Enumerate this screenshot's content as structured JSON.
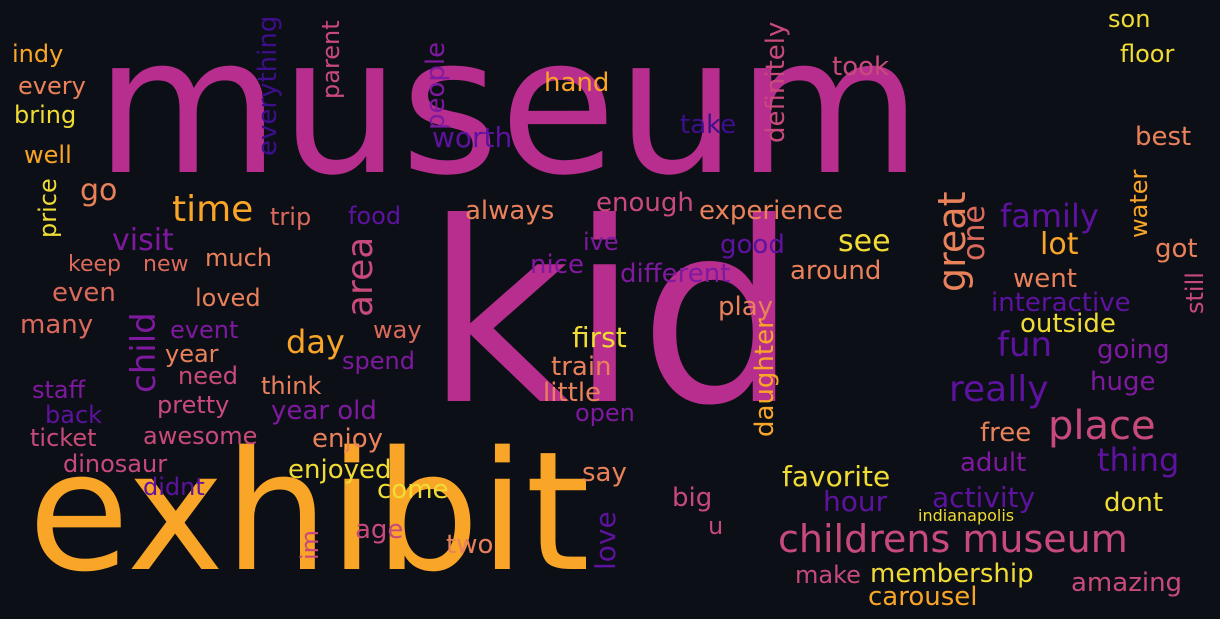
{
  "background": "#0d0f16",
  "palette": {
    "magenta": "#b82e8f",
    "orange": "#f9a528",
    "yellow": "#f0dc34",
    "salmon": "#dc6a5c",
    "coral": "#e9815a",
    "pink": "#c84a7c",
    "purple": "#7e19a0",
    "violet": "#5d12a0",
    "indigo": "#3d0f8c"
  },
  "words": [
    {
      "text": "museum",
      "color": "magenta"
    },
    {
      "text": "kid",
      "color": "magenta"
    },
    {
      "text": "exhibit",
      "color": "orange"
    },
    {
      "text": "childrens museum",
      "color": "pink"
    },
    {
      "text": "son",
      "color": "yellow"
    },
    {
      "text": "floor",
      "color": "yellow"
    },
    {
      "text": "indy",
      "color": "orange"
    },
    {
      "text": "every",
      "color": "coral"
    },
    {
      "text": "bring",
      "color": "yellow"
    },
    {
      "text": "well",
      "color": "orange"
    },
    {
      "text": "go",
      "color": "coral"
    },
    {
      "text": "price",
      "color": "yellow"
    },
    {
      "text": "time",
      "color": "orange"
    },
    {
      "text": "trip",
      "color": "salmon"
    },
    {
      "text": "visit",
      "color": "purple"
    },
    {
      "text": "keep",
      "color": "salmon"
    },
    {
      "text": "new",
      "color": "salmon"
    },
    {
      "text": "much",
      "color": "coral"
    },
    {
      "text": "even",
      "color": "salmon"
    },
    {
      "text": "loved",
      "color": "coral"
    },
    {
      "text": "many",
      "color": "salmon"
    },
    {
      "text": "child",
      "color": "purple"
    },
    {
      "text": "event",
      "color": "purple"
    },
    {
      "text": "year",
      "color": "coral"
    },
    {
      "text": "need",
      "color": "pink"
    },
    {
      "text": "staff",
      "color": "purple"
    },
    {
      "text": "pretty",
      "color": "pink"
    },
    {
      "text": "back",
      "color": "violet"
    },
    {
      "text": "ticket",
      "color": "pink"
    },
    {
      "text": "awesome",
      "color": "pink"
    },
    {
      "text": "dinosaur",
      "color": "pink"
    },
    {
      "text": "didnt",
      "color": "violet"
    },
    {
      "text": "everything",
      "color": "indigo"
    },
    {
      "text": "parent",
      "color": "pink"
    },
    {
      "text": "people",
      "color": "purple"
    },
    {
      "text": "worth",
      "color": "violet"
    },
    {
      "text": "hand",
      "color": "orange"
    },
    {
      "text": "take",
      "color": "indigo"
    },
    {
      "text": "definitely",
      "color": "pink"
    },
    {
      "text": "took",
      "color": "pink"
    },
    {
      "text": "best",
      "color": "coral"
    },
    {
      "text": "food",
      "color": "violet"
    },
    {
      "text": "always",
      "color": "coral"
    },
    {
      "text": "enough",
      "color": "pink"
    },
    {
      "text": "experience",
      "color": "coral"
    },
    {
      "text": "area",
      "color": "pink"
    },
    {
      "text": "day",
      "color": "orange"
    },
    {
      "text": "way",
      "color": "salmon"
    },
    {
      "text": "spend",
      "color": "purple"
    },
    {
      "text": "think",
      "color": "coral"
    },
    {
      "text": "year old",
      "color": "purple"
    },
    {
      "text": "enjoy",
      "color": "coral"
    },
    {
      "text": "ive",
      "color": "purple"
    },
    {
      "text": "nice",
      "color": "purple"
    },
    {
      "text": "good",
      "color": "violet"
    },
    {
      "text": "different",
      "color": "purple"
    },
    {
      "text": "see",
      "color": "yellow"
    },
    {
      "text": "around",
      "color": "coral"
    },
    {
      "text": "great",
      "color": "coral"
    },
    {
      "text": "one",
      "color": "salmon"
    },
    {
      "text": "family",
      "color": "violet"
    },
    {
      "text": "lot",
      "color": "orange"
    },
    {
      "text": "water",
      "color": "orange"
    },
    {
      "text": "got",
      "color": "coral"
    },
    {
      "text": "went",
      "color": "coral"
    },
    {
      "text": "interactive",
      "color": "violet"
    },
    {
      "text": "still",
      "color": "pink"
    },
    {
      "text": "play",
      "color": "coral"
    },
    {
      "text": "first",
      "color": "yellow"
    },
    {
      "text": "train",
      "color": "coral"
    },
    {
      "text": "little",
      "color": "coral"
    },
    {
      "text": "open",
      "color": "purple"
    },
    {
      "text": "daughter",
      "color": "orange"
    },
    {
      "text": "fun",
      "color": "violet"
    },
    {
      "text": "outside",
      "color": "yellow"
    },
    {
      "text": "going",
      "color": "purple"
    },
    {
      "text": "really",
      "color": "violet"
    },
    {
      "text": "huge",
      "color": "purple"
    },
    {
      "text": "place",
      "color": "pink"
    },
    {
      "text": "free",
      "color": "coral"
    },
    {
      "text": "thing",
      "color": "violet"
    },
    {
      "text": "adult",
      "color": "purple"
    },
    {
      "text": "enjoyed",
      "color": "yellow"
    },
    {
      "text": "come",
      "color": "yellow"
    },
    {
      "text": "say",
      "color": "coral"
    },
    {
      "text": "favorite",
      "color": "yellow"
    },
    {
      "text": "hour",
      "color": "violet"
    },
    {
      "text": "activity",
      "color": "violet"
    },
    {
      "text": "dont",
      "color": "yellow"
    },
    {
      "text": "indianapolis",
      "color": "yellow"
    },
    {
      "text": "big",
      "color": "pink"
    },
    {
      "text": "u",
      "color": "pink"
    },
    {
      "text": "love",
      "color": "violet"
    },
    {
      "text": "im",
      "color": "pink"
    },
    {
      "text": "age",
      "color": "pink"
    },
    {
      "text": "two",
      "color": "coral"
    },
    {
      "text": "make",
      "color": "pink"
    },
    {
      "text": "membership",
      "color": "yellow"
    },
    {
      "text": "carousel",
      "color": "orange"
    },
    {
      "text": "amazing",
      "color": "pink"
    }
  ]
}
